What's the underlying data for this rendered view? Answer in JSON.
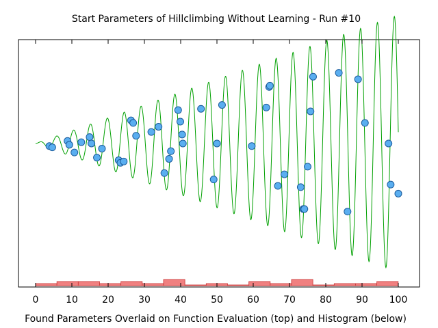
{
  "chart_data": {
    "type": "scatter",
    "title": "Start Parameters of Hillclimbing Without Learning - Run #10",
    "xlabel": "Found Parameters Overlaid on Function Evaluation (top) and Histogram (below)",
    "xlim": [
      -2,
      102
    ],
    "ylim": [
      -1.02,
      0.72
    ],
    "grid": false,
    "legend": "none",
    "x_ticks": [
      0,
      10,
      20,
      30,
      40,
      50,
      60,
      70,
      80,
      90,
      100
    ],
    "colors": {
      "curve": "#00a000",
      "points_fill": "#5aaef0",
      "points_stroke": "#1a5a9a",
      "histogram_fill": "#f08080",
      "histogram_stroke": "#c83232"
    },
    "function_curve": {
      "description": "Function evaluation curve: f(x) = 0.01 x sin(1.35 x)",
      "x_start": 0,
      "x_end": 100
    },
    "points": [
      {
        "x": 3.8,
        "y": -0.02
      },
      {
        "x": 4.6,
        "y": -0.03
      },
      {
        "x": 8.8,
        "y": 0.02
      },
      {
        "x": 9.3,
        "y": -0.01
      },
      {
        "x": 10.7,
        "y": -0.07
      },
      {
        "x": 12.6,
        "y": 0.01
      },
      {
        "x": 14.9,
        "y": 0.05
      },
      {
        "x": 15.4,
        "y": 0.0
      },
      {
        "x": 16.9,
        "y": -0.11
      },
      {
        "x": 18.3,
        "y": -0.04
      },
      {
        "x": 22.9,
        "y": -0.13
      },
      {
        "x": 23.4,
        "y": -0.15
      },
      {
        "x": 24.3,
        "y": -0.14
      },
      {
        "x": 26.3,
        "y": 0.18
      },
      {
        "x": 26.9,
        "y": 0.16
      },
      {
        "x": 27.7,
        "y": 0.06
      },
      {
        "x": 31.9,
        "y": 0.09
      },
      {
        "x": 33.9,
        "y": 0.13
      },
      {
        "x": 35.5,
        "y": -0.23
      },
      {
        "x": 36.8,
        "y": -0.12
      },
      {
        "x": 37.3,
        "y": -0.06
      },
      {
        "x": 39.3,
        "y": 0.26
      },
      {
        "x": 39.9,
        "y": 0.17
      },
      {
        "x": 40.4,
        "y": 0.07
      },
      {
        "x": 40.6,
        "y": 0.0
      },
      {
        "x": 45.6,
        "y": 0.27
      },
      {
        "x": 49.1,
        "y": -0.28
      },
      {
        "x": 50.0,
        "y": 0.0
      },
      {
        "x": 51.4,
        "y": 0.3
      },
      {
        "x": 59.6,
        "y": -0.02
      },
      {
        "x": 63.6,
        "y": 0.28
      },
      {
        "x": 64.4,
        "y": 0.44
      },
      {
        "x": 64.6,
        "y": 0.45
      },
      {
        "x": 66.8,
        "y": -0.33
      },
      {
        "x": 68.6,
        "y": -0.24
      },
      {
        "x": 73.1,
        "y": -0.34
      },
      {
        "x": 73.8,
        "y": -0.51
      },
      {
        "x": 74.1,
        "y": -0.51
      },
      {
        "x": 75.0,
        "y": -0.18
      },
      {
        "x": 75.8,
        "y": 0.25
      },
      {
        "x": 76.5,
        "y": 0.52
      },
      {
        "x": 83.6,
        "y": 0.55
      },
      {
        "x": 86.0,
        "y": -0.53
      },
      {
        "x": 88.9,
        "y": 0.5
      },
      {
        "x": 90.8,
        "y": 0.16
      },
      {
        "x": 97.3,
        "y": 0.0
      },
      {
        "x": 97.9,
        "y": -0.32
      },
      {
        "x": 100.0,
        "y": -0.39
      }
    ],
    "histogram": {
      "bin_width": 5.88,
      "start": 0,
      "counts": [
        1,
        2,
        2,
        1,
        2,
        1,
        3,
        0,
        1,
        0,
        2,
        1,
        3,
        0,
        1,
        1,
        2
      ]
    }
  }
}
